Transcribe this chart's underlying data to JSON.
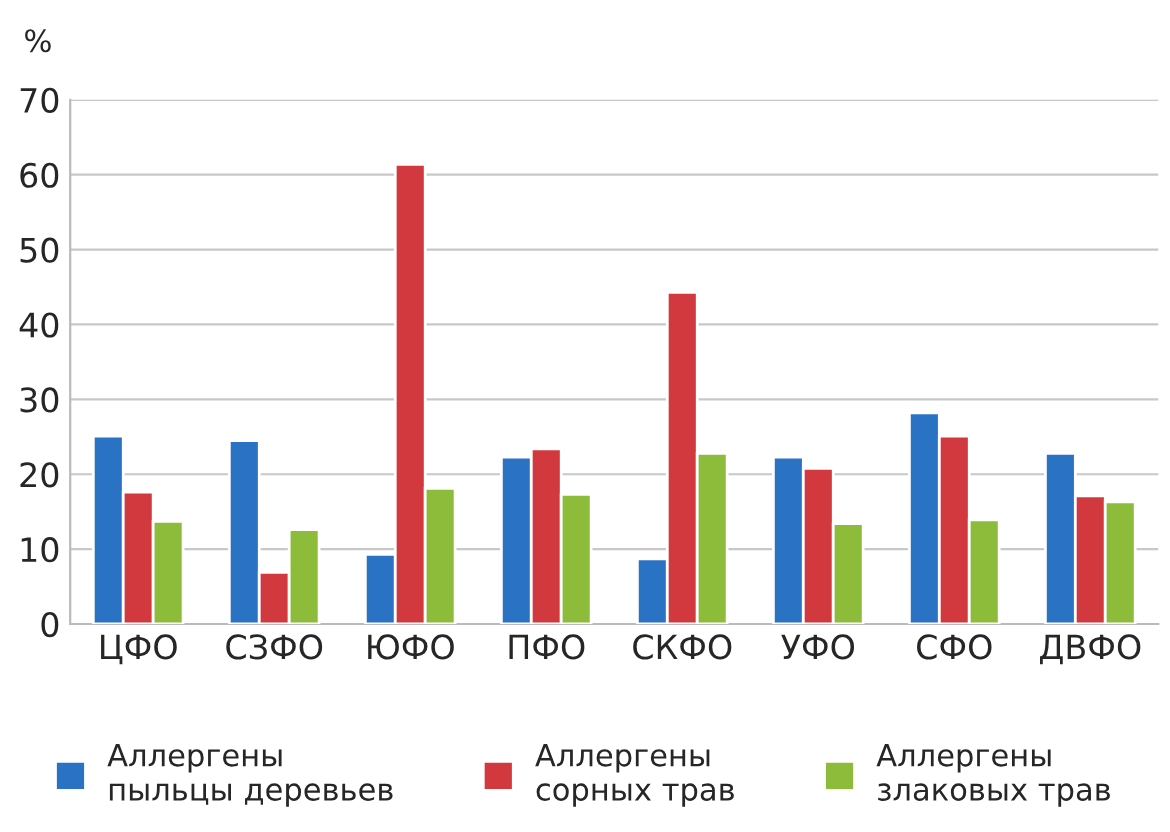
{
  "chart_data": {
    "type": "bar",
    "ylabel": "%",
    "categories": [
      "ЦФО",
      "СЗФО",
      "ЮФО",
      "ПФО",
      "СКФО",
      "УФО",
      "СФО",
      "ДВФО"
    ],
    "series": [
      {
        "name": "Аллергены\nпыльцы деревьев",
        "color": "#2a73c4",
        "values": [
          25.1,
          24.5,
          9.3,
          22.3,
          8.7,
          22.3,
          28.2,
          22.8
        ]
      },
      {
        "name": "Аллергены\nсорных трав",
        "color": "#d1393f",
        "values": [
          17.6,
          6.9,
          61.4,
          23.4,
          44.3,
          20.8,
          25.1,
          17.1
        ]
      },
      {
        "name": "Аллергены\nзлаковых трав",
        "color": "#8dbb3a",
        "values": [
          13.7,
          12.6,
          18.1,
          17.3,
          22.8,
          13.4,
          13.9,
          16.3
        ]
      }
    ],
    "ylim": [
      0,
      70
    ],
    "yticks": [
      0,
      10,
      20,
      30,
      40,
      50,
      60,
      70
    ],
    "grid": "y",
    "legend": "bottom"
  }
}
